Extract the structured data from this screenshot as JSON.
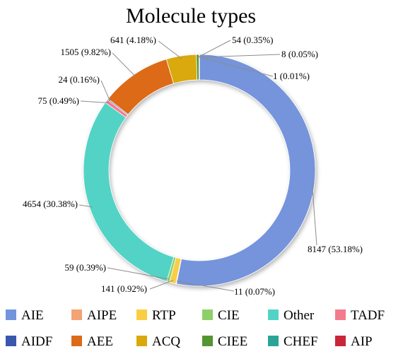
{
  "chart_data": {
    "type": "pie",
    "variant": "donut",
    "title": "Molecule types",
    "legend_position": "bottom",
    "slices": [
      {
        "name": "AIE",
        "value": 8147,
        "percent": "53.18%",
        "color": "#7494DC"
      },
      {
        "name": "AIPE",
        "value": 11,
        "percent": "0.07%",
        "color": "#F3A374"
      },
      {
        "name": "RTP",
        "value": 141,
        "percent": "0.92%",
        "color": "#F9CE45"
      },
      {
        "name": "CIE",
        "value": 59,
        "percent": "0.39%",
        "color": "#8FCF69"
      },
      {
        "name": "Other",
        "value": 4654,
        "percent": "30.38%",
        "color": "#53D3C6"
      },
      {
        "name": "TADF",
        "value": 75,
        "percent": "0.49%",
        "color": "#F27C8C"
      },
      {
        "name": "AIDF",
        "value": 24,
        "percent": "0.16%",
        "color": "#3957AF"
      },
      {
        "name": "AEE",
        "value": 1505,
        "percent": "9.82%",
        "color": "#DD6A18"
      },
      {
        "name": "ACQ",
        "value": 641,
        "percent": "4.18%",
        "color": "#D9A90A"
      },
      {
        "name": "CIEE",
        "value": 54,
        "percent": "0.35%",
        "color": "#53962F"
      },
      {
        "name": "CHEF",
        "value": 8,
        "percent": "0.05%",
        "color": "#2AA496"
      },
      {
        "name": "AIP",
        "value": 1,
        "percent": "0.01%",
        "color": "#C82639"
      }
    ],
    "legend_order": [
      "AIE",
      "AIPE",
      "RTP",
      "CIE",
      "Other",
      "TADF",
      "AIDF",
      "AEE",
      "ACQ",
      "CIEE",
      "CHEF",
      "AIP"
    ]
  }
}
